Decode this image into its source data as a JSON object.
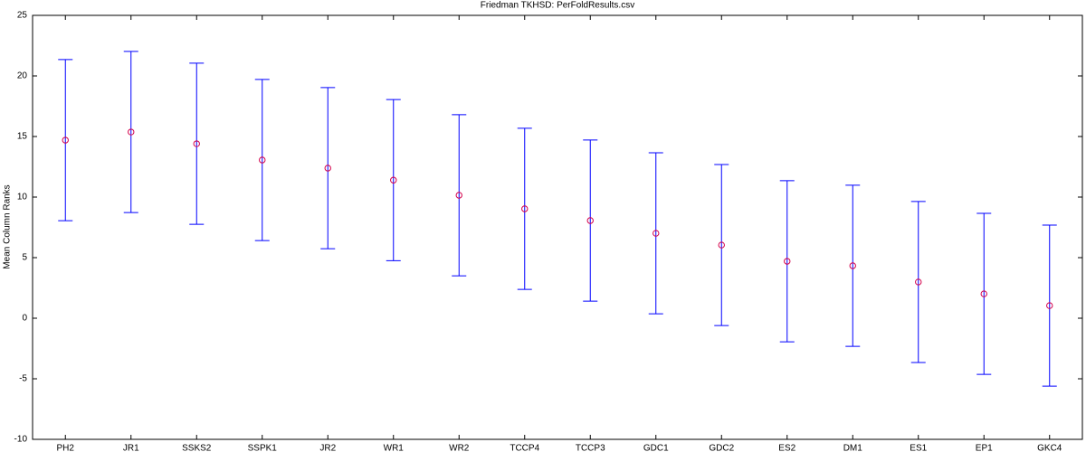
{
  "chart_data": {
    "type": "errorbar",
    "title": "Friedman TKHSD: PerFoldResults.csv",
    "y_label": "Mean Column Ranks",
    "categories": [
      "PH2",
      "JR1",
      "SSKS2",
      "SSPK1",
      "JR2",
      "WR1",
      "WR2",
      "TCCP4",
      "TCCP3",
      "GDC1",
      "GDC2",
      "ES2",
      "DM1",
      "ES1",
      "EP1",
      "GKC4"
    ],
    "values": [
      14.7,
      15.37,
      14.4,
      13.06,
      12.39,
      11.4,
      10.15,
      9.03,
      8.06,
      7.01,
      6.04,
      4.7,
      4.33,
      2.99,
      2.01,
      1.04
    ],
    "errors": [
      6.65,
      6.65,
      6.65,
      6.65,
      6.65,
      6.65,
      6.65,
      6.65,
      6.65,
      6.65,
      6.65,
      6.65,
      6.65,
      6.65,
      6.65,
      6.65
    ],
    "bar_color": "#0000ff",
    "marker_color": "#d4004a",
    "ylim": [
      -10,
      25
    ],
    "yticks": [
      -10,
      -5,
      0,
      5,
      10,
      15,
      20,
      25
    ],
    "grid": false
  }
}
